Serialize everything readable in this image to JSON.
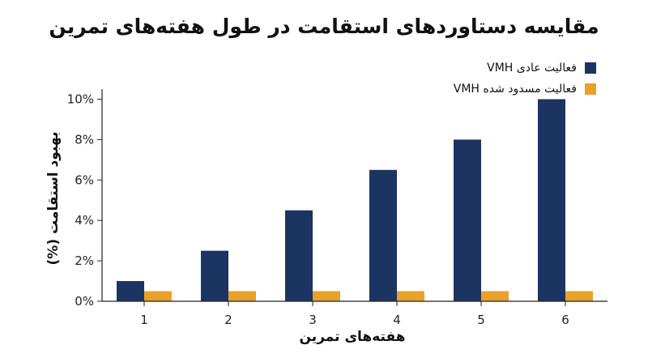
{
  "chart_data": {
    "type": "bar",
    "title": "مقایسه دستاوردهای استقامت در طول هفته‌های تمرین",
    "xlabel": "هفته‌های تمرین",
    "ylabel": "بهبود استقامت (%)",
    "categories": [
      "1",
      "2",
      "3",
      "4",
      "5",
      "6"
    ],
    "series": [
      {
        "name": "فعالیت عادی VMH",
        "color": "#1c3461",
        "values": [
          1.0,
          2.5,
          4.5,
          6.5,
          8.0,
          10.0
        ]
      },
      {
        "name": "فعالیت مسدود شده VMH",
        "color": "#e8a22c",
        "values": [
          0.5,
          0.5,
          0.5,
          0.5,
          0.5,
          0.5
        ]
      }
    ],
    "ylim": [
      0,
      10.5
    ],
    "yticks": [
      0,
      2,
      4,
      6,
      8,
      10
    ],
    "ytick_labels": [
      "0%",
      "2%",
      "4%",
      "6%",
      "8%",
      "10%"
    ],
    "grid": false,
    "legend_position": "top-right"
  }
}
